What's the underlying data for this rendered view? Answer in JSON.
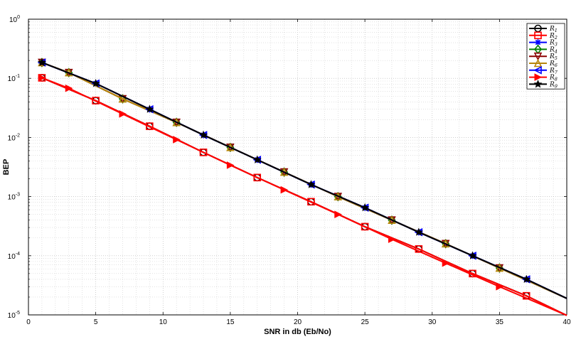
{
  "chart_data": {
    "type": "line",
    "xlabel": "SNR in db (Eb/No)",
    "ylabel": "BEP",
    "xlim": [
      0,
      40
    ],
    "ylim": [
      1e-05,
      1
    ],
    "yscale": "log",
    "grid": true,
    "legend_position": "top-right",
    "x_ticks": [
      "0",
      "5",
      "10",
      "15",
      "20",
      "25",
      "30",
      "35",
      "40"
    ],
    "y_ticks": [
      {
        "base": "10",
        "exp": "0",
        "value": 1
      },
      {
        "base": "10",
        "exp": "-1",
        "value": 0.1
      },
      {
        "base": "10",
        "exp": "-2",
        "value": 0.01
      },
      {
        "base": "10",
        "exp": "-3",
        "value": 0.001
      },
      {
        "base": "10",
        "exp": "-4",
        "value": 0.0001
      },
      {
        "base": "10",
        "exp": "-5",
        "value": 1e-05
      }
    ],
    "series": [
      {
        "name": "R1",
        "sub": "1",
        "color": "#000000",
        "marker": "circle",
        "x": [
          1,
          5,
          9,
          13,
          17,
          21,
          25,
          29,
          33,
          37,
          40
        ],
        "y": [
          0.102,
          0.042,
          0.0155,
          0.0056,
          0.0021,
          0.00082,
          0.00031,
          0.00013,
          5e-05,
          2.1e-05,
          9.8e-06
        ]
      },
      {
        "name": "R2",
        "sub": "2",
        "color": "#ff0000",
        "marker": "square",
        "x": [
          1,
          5,
          9,
          13,
          17,
          21,
          25,
          29,
          33,
          37,
          40
        ],
        "y": [
          0.102,
          0.042,
          0.0155,
          0.0056,
          0.0021,
          0.00082,
          0.00031,
          0.00013,
          5e-05,
          2.1e-05,
          9.8e-06
        ]
      },
      {
        "name": "R3",
        "sub": "3",
        "color": "#0000ff",
        "marker": "star",
        "x": [
          1,
          5,
          9,
          13,
          17,
          21,
          25,
          29,
          33,
          37,
          40
        ],
        "y": [
          0.185,
          0.082,
          0.03,
          0.011,
          0.0042,
          0.0016,
          0.00065,
          0.00025,
          0.0001,
          4e-05,
          1.9e-05
        ]
      },
      {
        "name": "R4",
        "sub": "4",
        "color": "#008000",
        "marker": "diamond",
        "x": [
          1,
          3,
          7,
          11,
          15,
          19,
          23,
          27,
          31,
          35,
          40
        ],
        "y": [
          0.185,
          0.125,
          0.045,
          0.018,
          0.0068,
          0.0026,
          0.001,
          0.0004,
          0.00016,
          6.2e-05,
          1.9e-05
        ]
      },
      {
        "name": "R5",
        "sub": "5",
        "color": "#8b0000",
        "marker": "triangle-down",
        "x": [
          1,
          3,
          7,
          11,
          15,
          19,
          23,
          27,
          31,
          35,
          40
        ],
        "y": [
          0.185,
          0.125,
          0.045,
          0.018,
          0.0068,
          0.0026,
          0.001,
          0.0004,
          0.00016,
          6.2e-05,
          1.9e-05
        ]
      },
      {
        "name": "R6",
        "sub": "6",
        "color": "#b8860b",
        "marker": "triangle-up",
        "x": [
          1,
          3,
          7,
          11,
          15,
          19,
          23,
          27,
          31,
          35,
          40
        ],
        "y": [
          0.185,
          0.125,
          0.045,
          0.018,
          0.0068,
          0.0026,
          0.001,
          0.0004,
          0.00016,
          6.2e-05,
          1.9e-05
        ]
      },
      {
        "name": "R7",
        "sub": "7",
        "color": "#0000ff",
        "marker": "triangle-left",
        "x": [
          1,
          5,
          9,
          13,
          17,
          21,
          25,
          29,
          33,
          37,
          40
        ],
        "y": [
          0.185,
          0.082,
          0.03,
          0.011,
          0.0042,
          0.0016,
          0.00065,
          0.00025,
          0.0001,
          4e-05,
          1.9e-05
        ]
      },
      {
        "name": "R8",
        "sub": "8",
        "color": "#ff0000",
        "marker": "triangle-right",
        "x": [
          1,
          3,
          7,
          11,
          15,
          19,
          23,
          27,
          31,
          35,
          40
        ],
        "y": [
          0.102,
          0.068,
          0.025,
          0.0092,
          0.0034,
          0.0013,
          0.0005,
          0.00019,
          7.5e-05,
          3e-05,
          9.8e-06
        ]
      },
      {
        "name": "R9",
        "sub": "9",
        "color": "#000000",
        "marker": "star5",
        "x": [
          1,
          5,
          9,
          13,
          17,
          21,
          25,
          29,
          33,
          37,
          40
        ],
        "y": [
          0.185,
          0.082,
          0.03,
          0.011,
          0.0042,
          0.0016,
          0.00065,
          0.00025,
          0.0001,
          4e-05,
          1.9e-05
        ]
      }
    ]
  }
}
